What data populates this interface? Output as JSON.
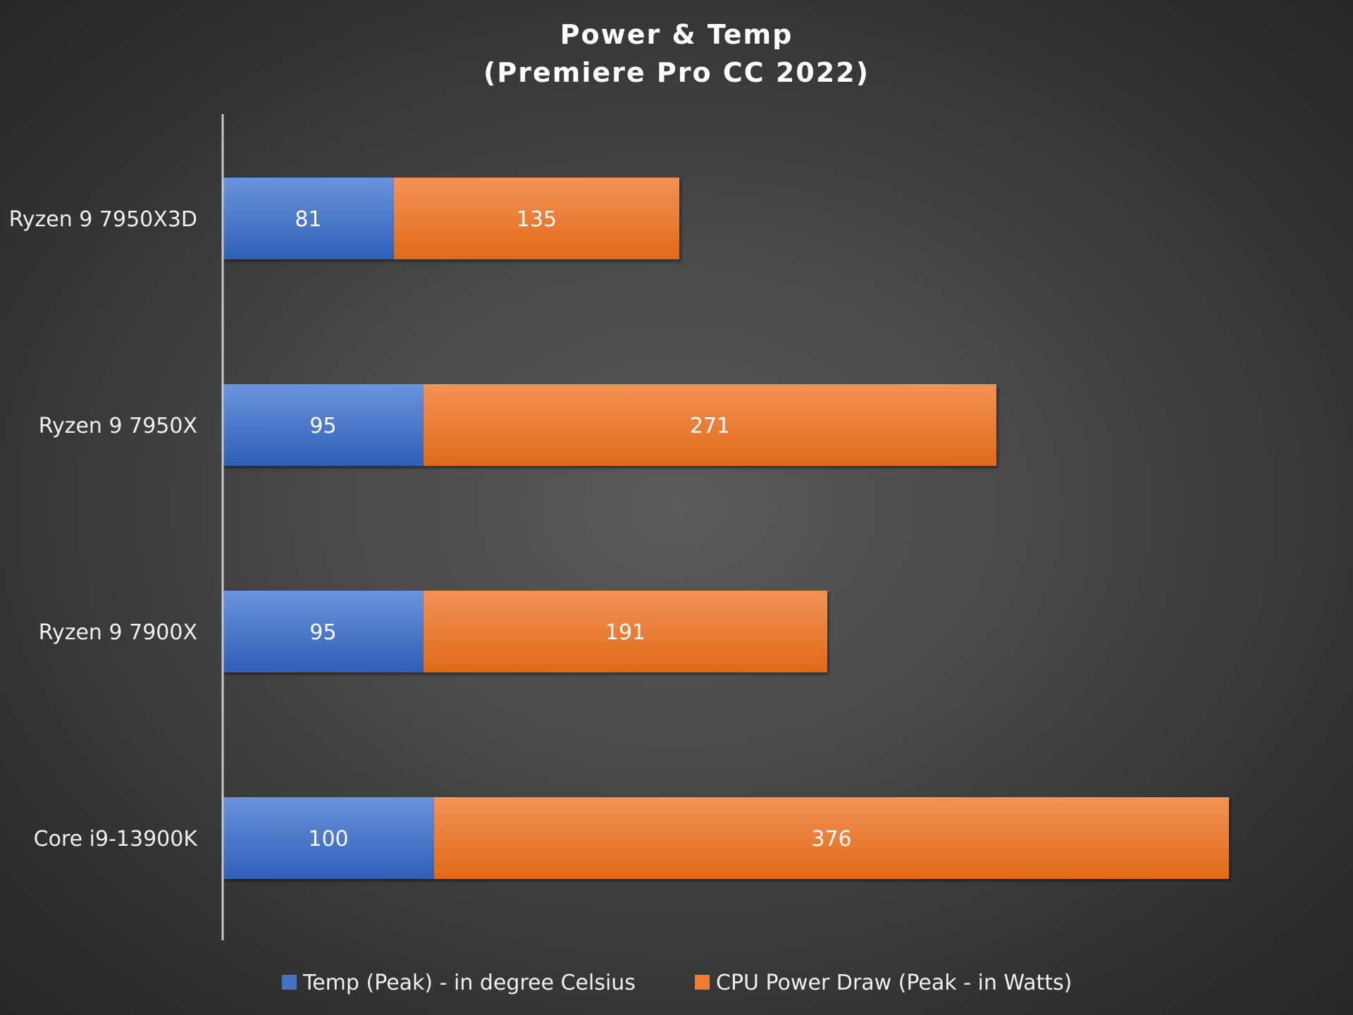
{
  "chart_data": {
    "type": "bar",
    "orientation": "horizontal",
    "stacked": true,
    "title": "Power & Temp",
    "subtitle": "(Premiere Pro CC 2022)",
    "categories": [
      "Ryzen 9 7950X3D",
      "Ryzen 9 7950X",
      "Ryzen 9 7900X",
      "Core i9-13900K"
    ],
    "series": [
      {
        "name": "Temp (Peak) - in degree Celsius",
        "values": [
          81,
          95,
          95,
          100
        ],
        "color": "#4472c4"
      },
      {
        "name": "CPU Power Draw (Peak - in Watts)",
        "values": [
          135,
          271,
          191,
          376
        ],
        "color": "#ed7d31"
      }
    ],
    "xlim": [
      0,
      500
    ],
    "grid": false,
    "legend_position": "bottom"
  }
}
